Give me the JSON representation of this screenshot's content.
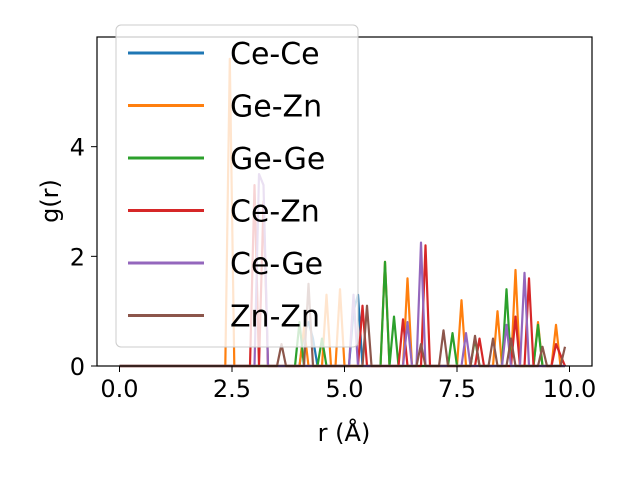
{
  "chart_data": {
    "type": "line",
    "xlabel": "r (Å)",
    "ylabel": "g(r)",
    "xlim": [
      -0.5,
      10.5
    ],
    "ylim": [
      0,
      6.0
    ],
    "xticks": [
      0.0,
      2.5,
      5.0,
      7.5,
      10.0
    ],
    "xtick_labels": [
      "0.0",
      "2.5",
      "5.0",
      "7.5",
      "10.0"
    ],
    "yticks": [
      0,
      2,
      4
    ],
    "ytick_labels": [
      "0",
      "2",
      "4"
    ],
    "grid": false,
    "legend_position": "top-left",
    "series": [
      {
        "name": "Ce-Ce",
        "color": "#1f77b4",
        "x": [
          0.0,
          3.8,
          4.0,
          4.1,
          4.2,
          4.3,
          4.4,
          5.1,
          5.2,
          5.3,
          5.4,
          9.5,
          9.9
        ],
        "y": [
          0.0,
          0.0,
          0.0,
          0.6,
          0.8,
          0.5,
          0.0,
          0.0,
          1.0,
          1.3,
          0.0,
          0.0,
          0.0
        ]
      },
      {
        "name": "Ge-Zn",
        "color": "#ff7f0e",
        "x": [
          0.0,
          2.35,
          2.45,
          2.55,
          2.6,
          3.6,
          4.0,
          4.1,
          4.2,
          4.5,
          4.6,
          4.7,
          4.8,
          4.9,
          5.0,
          5.1,
          5.8,
          5.9,
          6.0,
          6.3,
          6.4,
          6.5,
          7.5,
          7.6,
          7.7,
          8.3,
          8.4,
          8.5,
          8.7,
          8.8,
          8.9,
          9.2,
          9.3,
          9.4,
          9.6,
          9.7,
          9.8,
          9.9
        ],
        "y": [
          0.0,
          0.0,
          5.6,
          0.0,
          0.0,
          0.0,
          0.0,
          0.7,
          0.0,
          0.0,
          1.3,
          0.0,
          0.0,
          1.4,
          0.0,
          0.0,
          0.0,
          1.9,
          0.0,
          0.0,
          1.6,
          0.0,
          0.0,
          1.2,
          0.0,
          0.0,
          1.0,
          0.0,
          0.0,
          1.75,
          0.0,
          0.0,
          0.8,
          0.0,
          0.0,
          0.75,
          0.0,
          0.0
        ]
      },
      {
        "name": "Ge-Ge",
        "color": "#2ca02c",
        "x": [
          0.0,
          3.9,
          4.0,
          4.1,
          4.4,
          4.5,
          4.6,
          5.8,
          5.9,
          6.0,
          6.1,
          6.2,
          7.3,
          7.4,
          7.5,
          7.8,
          7.9,
          8.0,
          8.5,
          8.6,
          8.7,
          9.2,
          9.3,
          9.4,
          9.9
        ],
        "y": [
          0.0,
          0.0,
          0.8,
          0.0,
          0.0,
          0.5,
          0.0,
          0.0,
          1.9,
          0.0,
          0.9,
          0.0,
          0.0,
          0.6,
          0.0,
          0.0,
          0.5,
          0.0,
          0.0,
          1.4,
          0.0,
          0.0,
          0.75,
          0.0,
          0.0
        ]
      },
      {
        "name": "Ce-Zn",
        "color": "#d62728",
        "x": [
          0.0,
          2.9,
          3.0,
          3.1,
          3.2,
          3.3,
          3.4,
          5.3,
          5.4,
          5.5,
          6.2,
          6.3,
          6.4,
          6.7,
          6.8,
          6.9,
          7.9,
          8.0,
          8.1,
          8.7,
          8.8,
          8.9,
          9.0,
          9.1,
          9.2,
          9.6,
          9.7,
          9.9
        ],
        "y": [
          0.0,
          0.0,
          3.3,
          0.0,
          3.0,
          0.0,
          0.0,
          0.0,
          1.1,
          0.0,
          0.0,
          0.85,
          0.0,
          0.0,
          2.2,
          0.0,
          0.0,
          0.5,
          0.0,
          0.0,
          0.9,
          0.0,
          0.0,
          1.6,
          0.0,
          0.0,
          0.4,
          0.0
        ]
      },
      {
        "name": "Ce-Ge",
        "color": "#9467bd",
        "x": [
          0.0,
          3.0,
          3.1,
          3.2,
          3.3,
          3.4,
          5.1,
          5.2,
          5.3,
          6.3,
          6.4,
          6.5,
          6.6,
          6.7,
          6.8,
          7.6,
          7.7,
          7.8,
          8.5,
          8.6,
          8.7,
          8.9,
          9.0,
          9.1,
          9.9
        ],
        "y": [
          0.0,
          0.0,
          3.5,
          3.3,
          0.0,
          0.0,
          0.0,
          1.3,
          0.0,
          0.0,
          0.8,
          0.0,
          0.0,
          2.25,
          0.0,
          0.0,
          0.6,
          0.0,
          0.0,
          0.75,
          0.0,
          0.0,
          1.7,
          0.0,
          0.0
        ]
      },
      {
        "name": "Zn-Zn",
        "color": "#8c564b",
        "x": [
          0.0,
          3.5,
          3.6,
          3.7,
          4.1,
          4.2,
          4.3,
          5.4,
          5.5,
          5.6,
          6.6,
          6.7,
          6.8,
          7.1,
          7.2,
          7.3,
          7.8,
          7.9,
          8.0,
          8.2,
          8.3,
          8.4,
          8.6,
          8.7,
          8.8,
          9.3,
          9.4,
          9.5,
          9.8,
          9.9
        ],
        "y": [
          0.0,
          0.0,
          0.4,
          0.0,
          0.0,
          1.5,
          0.0,
          0.0,
          1.1,
          0.0,
          0.0,
          0.4,
          0.0,
          0.0,
          0.65,
          0.0,
          0.0,
          0.55,
          0.0,
          0.0,
          0.5,
          0.0,
          0.0,
          0.5,
          0.0,
          0.0,
          0.35,
          0.0,
          0.0,
          0.35
        ]
      }
    ]
  }
}
